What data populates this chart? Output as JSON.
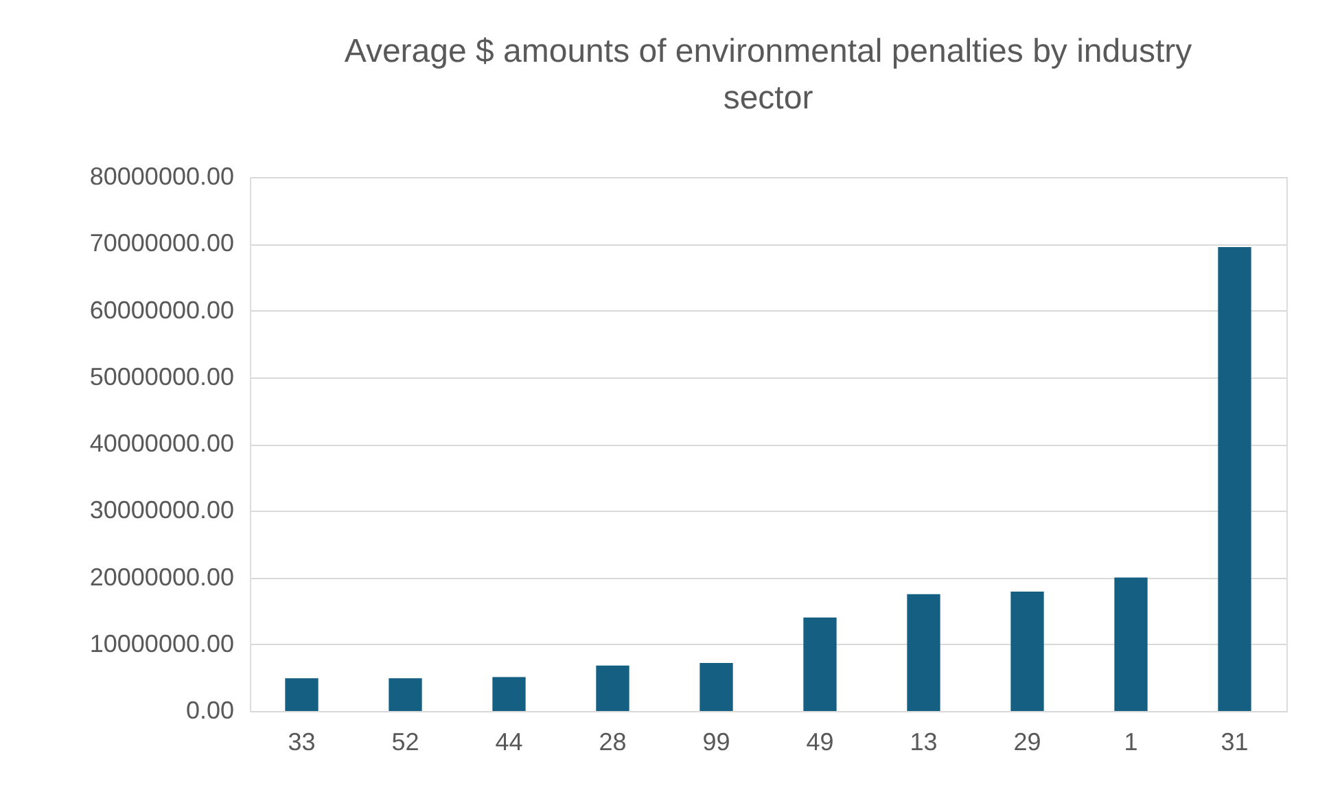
{
  "chart_data": {
    "type": "bar",
    "title": "Average $ amounts of environmental penalties by industry sector",
    "categories": [
      "33",
      "52",
      "44",
      "28",
      "99",
      "49",
      "13",
      "29",
      "1",
      "31"
    ],
    "values": [
      4900000,
      4900000,
      5100000,
      6800000,
      7200000,
      14000000,
      17500000,
      17900000,
      20000000,
      69500000
    ],
    "color": "#156082",
    "ylim": [
      0,
      80000000
    ],
    "yticks": [
      {
        "value": 0,
        "label": "0.00"
      },
      {
        "value": 10000000,
        "label": "10000000.00"
      },
      {
        "value": 20000000,
        "label": "20000000.00"
      },
      {
        "value": 30000000,
        "label": "30000000.00"
      },
      {
        "value": 40000000,
        "label": "40000000.00"
      },
      {
        "value": 50000000,
        "label": "50000000.00"
      },
      {
        "value": 60000000,
        "label": "60000000.00"
      },
      {
        "value": 70000000,
        "label": "70000000.00"
      },
      {
        "value": 80000000,
        "label": "80000000.00"
      }
    ],
    "grid": "y"
  }
}
